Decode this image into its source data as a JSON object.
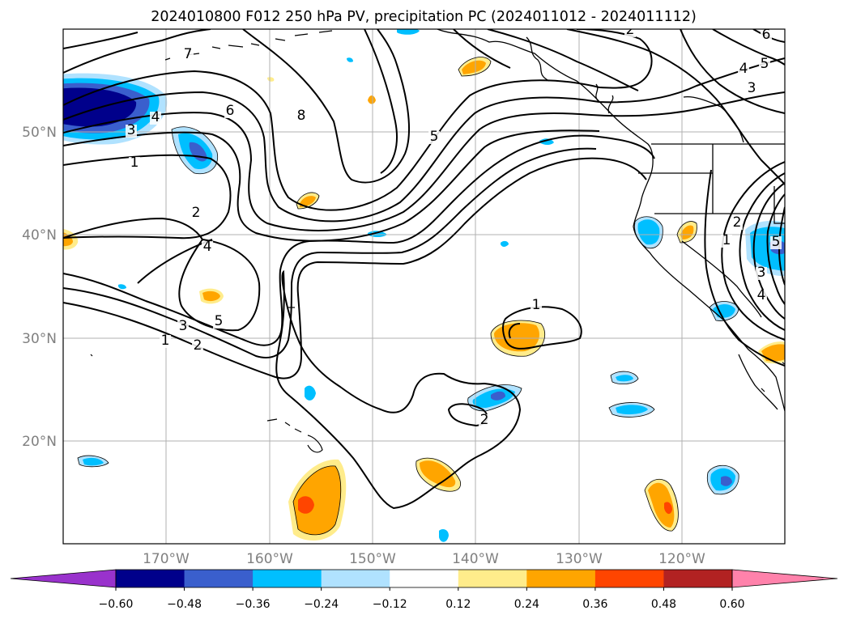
{
  "chart_data": {
    "type": "map",
    "title": "2024010800 F012 250 hPa PV, precipitation PC (2024011012 - 2024011112)",
    "lon_range": [
      -180,
      -110
    ],
    "lat_range": [
      10,
      60
    ],
    "x_ticks": [
      "170°W",
      "160°W",
      "150°W",
      "140°W",
      "130°W",
      "120°W"
    ],
    "y_ticks": [
      "50°N",
      "40°N",
      "30°N",
      "20°N"
    ],
    "grid": true,
    "colorbar": {
      "orientation": "horizontal",
      "extend": "both",
      "levels": [
        -0.6,
        -0.48,
        -0.36,
        -0.24,
        -0.12,
        0.12,
        0.24,
        0.36,
        0.48,
        0.6
      ],
      "tick_labels": [
        "−0.60",
        "−0.48",
        "−0.36",
        "−0.24",
        "−0.12",
        "0.12",
        "0.24",
        "0.36",
        "0.48",
        "0.60"
      ],
      "colors": [
        "#9932cc",
        "#00008b",
        "#3a5fcd",
        "#00bfff",
        "#b0e2ff",
        "#ffffff",
        "#ffec8b",
        "#ffa500",
        "#ff4500",
        "#b22222",
        "#ff82ab"
      ]
    },
    "pv_contour_labels": [
      "7",
      "6",
      "8",
      "5",
      "4",
      "3",
      "1",
      "2",
      "4",
      "3",
      "5",
      "1",
      "2",
      "1",
      "2",
      "1",
      "2",
      "3",
      "4",
      "5",
      "6",
      "5",
      "4",
      "3",
      "2"
    ]
  }
}
